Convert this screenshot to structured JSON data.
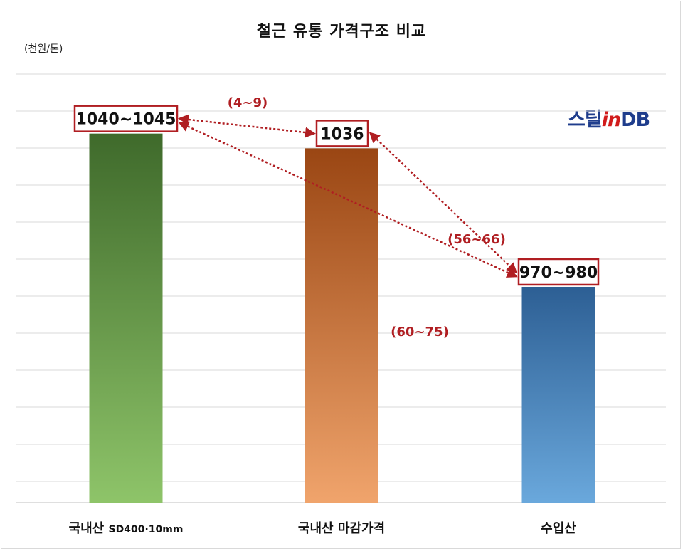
{
  "chart_data": {
    "type": "bar",
    "title": "철근 유통 가격구조 비교",
    "ylabel": "(천원/톤)",
    "watermark": {
      "part1": "스틸",
      "part2": "in",
      "part3": "DB"
    },
    "categories": [
      {
        "main": "국내산 ",
        "suffix": "SD400·10mm"
      },
      {
        "main": "국내산 마감가격",
        "suffix": ""
      },
      {
        "main": "수입산",
        "suffix": ""
      }
    ],
    "values": [
      1042.5,
      1036,
      975
    ],
    "value_labels": [
      "1040~1045",
      "1036",
      "970~980"
    ],
    "differences": [
      {
        "from": 0,
        "to": 1,
        "label": "(4~9)"
      },
      {
        "from": 1,
        "to": 2,
        "label": "(56~66)"
      },
      {
        "from": 0,
        "to": 2,
        "label": "(60~75)"
      }
    ],
    "ylim": [
      880,
      1075
    ],
    "grid": true,
    "colors": {
      "bar1_top": "#3f6a2b",
      "bar1_bottom": "#8ec469",
      "bar2_top": "#9a4613",
      "bar2_bottom": "#f0a46c",
      "bar3_top": "#2d5f94",
      "bar3_bottom": "#6aa8dc",
      "accent": "#b01e22",
      "grid": "#d9d9d9"
    }
  }
}
